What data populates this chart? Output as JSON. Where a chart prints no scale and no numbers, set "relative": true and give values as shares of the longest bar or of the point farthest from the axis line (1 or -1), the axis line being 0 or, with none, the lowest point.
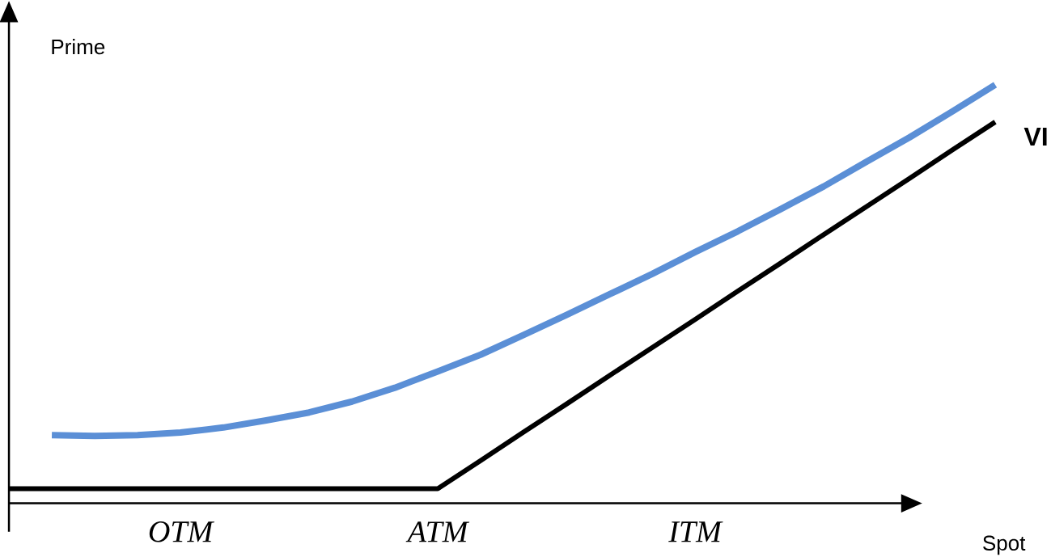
{
  "chart_data": {
    "type": "line",
    "relative": true,
    "xlabel": "Spot",
    "ylabel": "Prime",
    "categories": [
      null,
      null,
      null,
      null,
      null,
      null,
      null,
      null,
      null,
      null,
      null,
      null,
      null,
      null,
      null,
      null,
      null,
      null,
      null,
      null,
      null,
      null,
      null,
      null
    ],
    "series": [
      {
        "color": "#5b8fd6",
        "values": [
          null,
          0.163,
          0.161,
          0.163,
          0.169,
          0.181,
          0.198,
          0.217,
          0.243,
          0.276,
          0.315,
          0.355,
          0.402,
          0.45,
          0.499,
          0.548,
          0.6,
          0.65,
          0.703,
          0.757,
          0.816,
          0.874,
          0.936,
          1
        ]
      },
      {
        "name": "VI",
        "color": "#000000",
        "values": [
          0.035,
          0.035,
          0.035,
          0.035,
          0.035,
          0.035,
          0.035,
          0.035,
          0.035,
          0.035,
          0.035,
          0.102,
          0.17,
          0.237,
          0.305,
          0.372,
          0.439,
          0.507,
          0.574,
          0.642,
          0.709,
          0.776,
          0.844,
          0.911
        ]
      }
    ],
    "annotations": [
      "OTM",
      "ATM",
      "ITM"
    ]
  }
}
